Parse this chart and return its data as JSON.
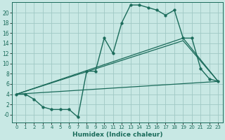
{
  "background_color": "#c8e8e4",
  "grid_color": "#a0c8c4",
  "line_color": "#1a6b5a",
  "xlabel": "Humidex (Indice chaleur)",
  "xlim": [
    -0.5,
    23.5
  ],
  "ylim": [
    -1.5,
    22
  ],
  "xticks": [
    0,
    1,
    2,
    3,
    4,
    5,
    6,
    7,
    8,
    9,
    10,
    11,
    12,
    13,
    14,
    15,
    16,
    17,
    18,
    19,
    20,
    21,
    22,
    23
  ],
  "yticks": [
    0,
    2,
    4,
    6,
    8,
    10,
    12,
    14,
    16,
    18,
    20
  ],
  "ytick_labels": [
    "-0",
    "2",
    "4",
    "6",
    "8",
    "10",
    "12",
    "14",
    "16",
    "18",
    "20"
  ],
  "line1_x": [
    0,
    1,
    2,
    3,
    4,
    5,
    6,
    7,
    8,
    9,
    10,
    11,
    12,
    13,
    14,
    15,
    16,
    17,
    18,
    19,
    20,
    21,
    22,
    23
  ],
  "line1_y": [
    4,
    4,
    3,
    1.5,
    1,
    1,
    1,
    -0.5,
    8.5,
    8.5,
    15,
    12,
    18,
    21.5,
    21.5,
    21,
    20.5,
    19.5,
    20.5,
    15,
    15,
    9,
    7,
    6.5
  ],
  "line2_x": [
    0,
    19,
    23
  ],
  "line2_y": [
    4,
    15,
    6.5
  ],
  "line3_x": [
    0,
    19,
    23
  ],
  "line3_y": [
    4,
    14.5,
    6.5
  ],
  "line4_x": [
    0,
    23
  ],
  "line4_y": [
    4,
    6.5
  ]
}
